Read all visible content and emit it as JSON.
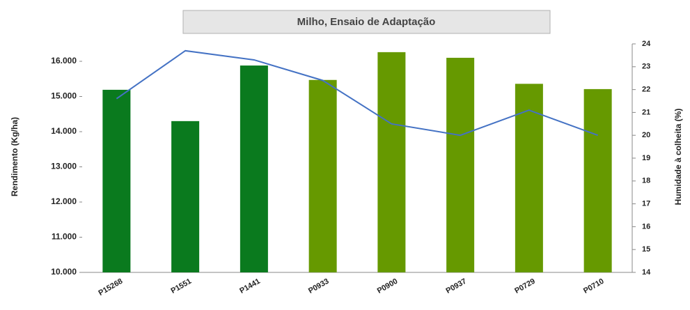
{
  "chart_data": {
    "type": "bar",
    "title": "Milho, Ensaio  de Adaptação",
    "ylabel": "Rendimento (Kg/ha)",
    "y2label": "Humidade à colheita (%)",
    "categories": [
      "P15268",
      "P1551",
      "P1441",
      "P0933",
      "P0900",
      "P0937",
      "P0729",
      "P0710"
    ],
    "series": [
      {
        "type": "bar",
        "colors": [
          "#0a7a1e",
          "#0a7a1e",
          "#0a7a1e",
          "#669900",
          "#669900",
          "#669900",
          "#669900",
          "#669900"
        ],
        "values": [
          15190,
          14300,
          15880,
          15470,
          16260,
          16100,
          15360,
          15210
        ]
      },
      {
        "type": "line",
        "color": "#4472c4",
        "axis": "y2",
        "values": [
          21.6,
          23.7,
          23.3,
          22.4,
          20.5,
          20.0,
          21.1,
          20.0
        ]
      }
    ],
    "ylim": [
      10000,
      16500
    ],
    "yticks": [
      {
        "value": 10000,
        "label": "10.000"
      },
      {
        "value": 11000,
        "label": "11.000"
      },
      {
        "value": 12000,
        "label": "12.000"
      },
      {
        "value": 13000,
        "label": "13.000"
      },
      {
        "value": 14000,
        "label": "14.000"
      },
      {
        "value": 15000,
        "label": "15.000"
      },
      {
        "value": 16000,
        "label": "16.000"
      }
    ],
    "y2lim": [
      14,
      24
    ],
    "y2ticks": [
      14,
      15,
      16,
      17,
      18,
      19,
      20,
      21,
      22,
      23,
      24
    ],
    "grid": false
  }
}
